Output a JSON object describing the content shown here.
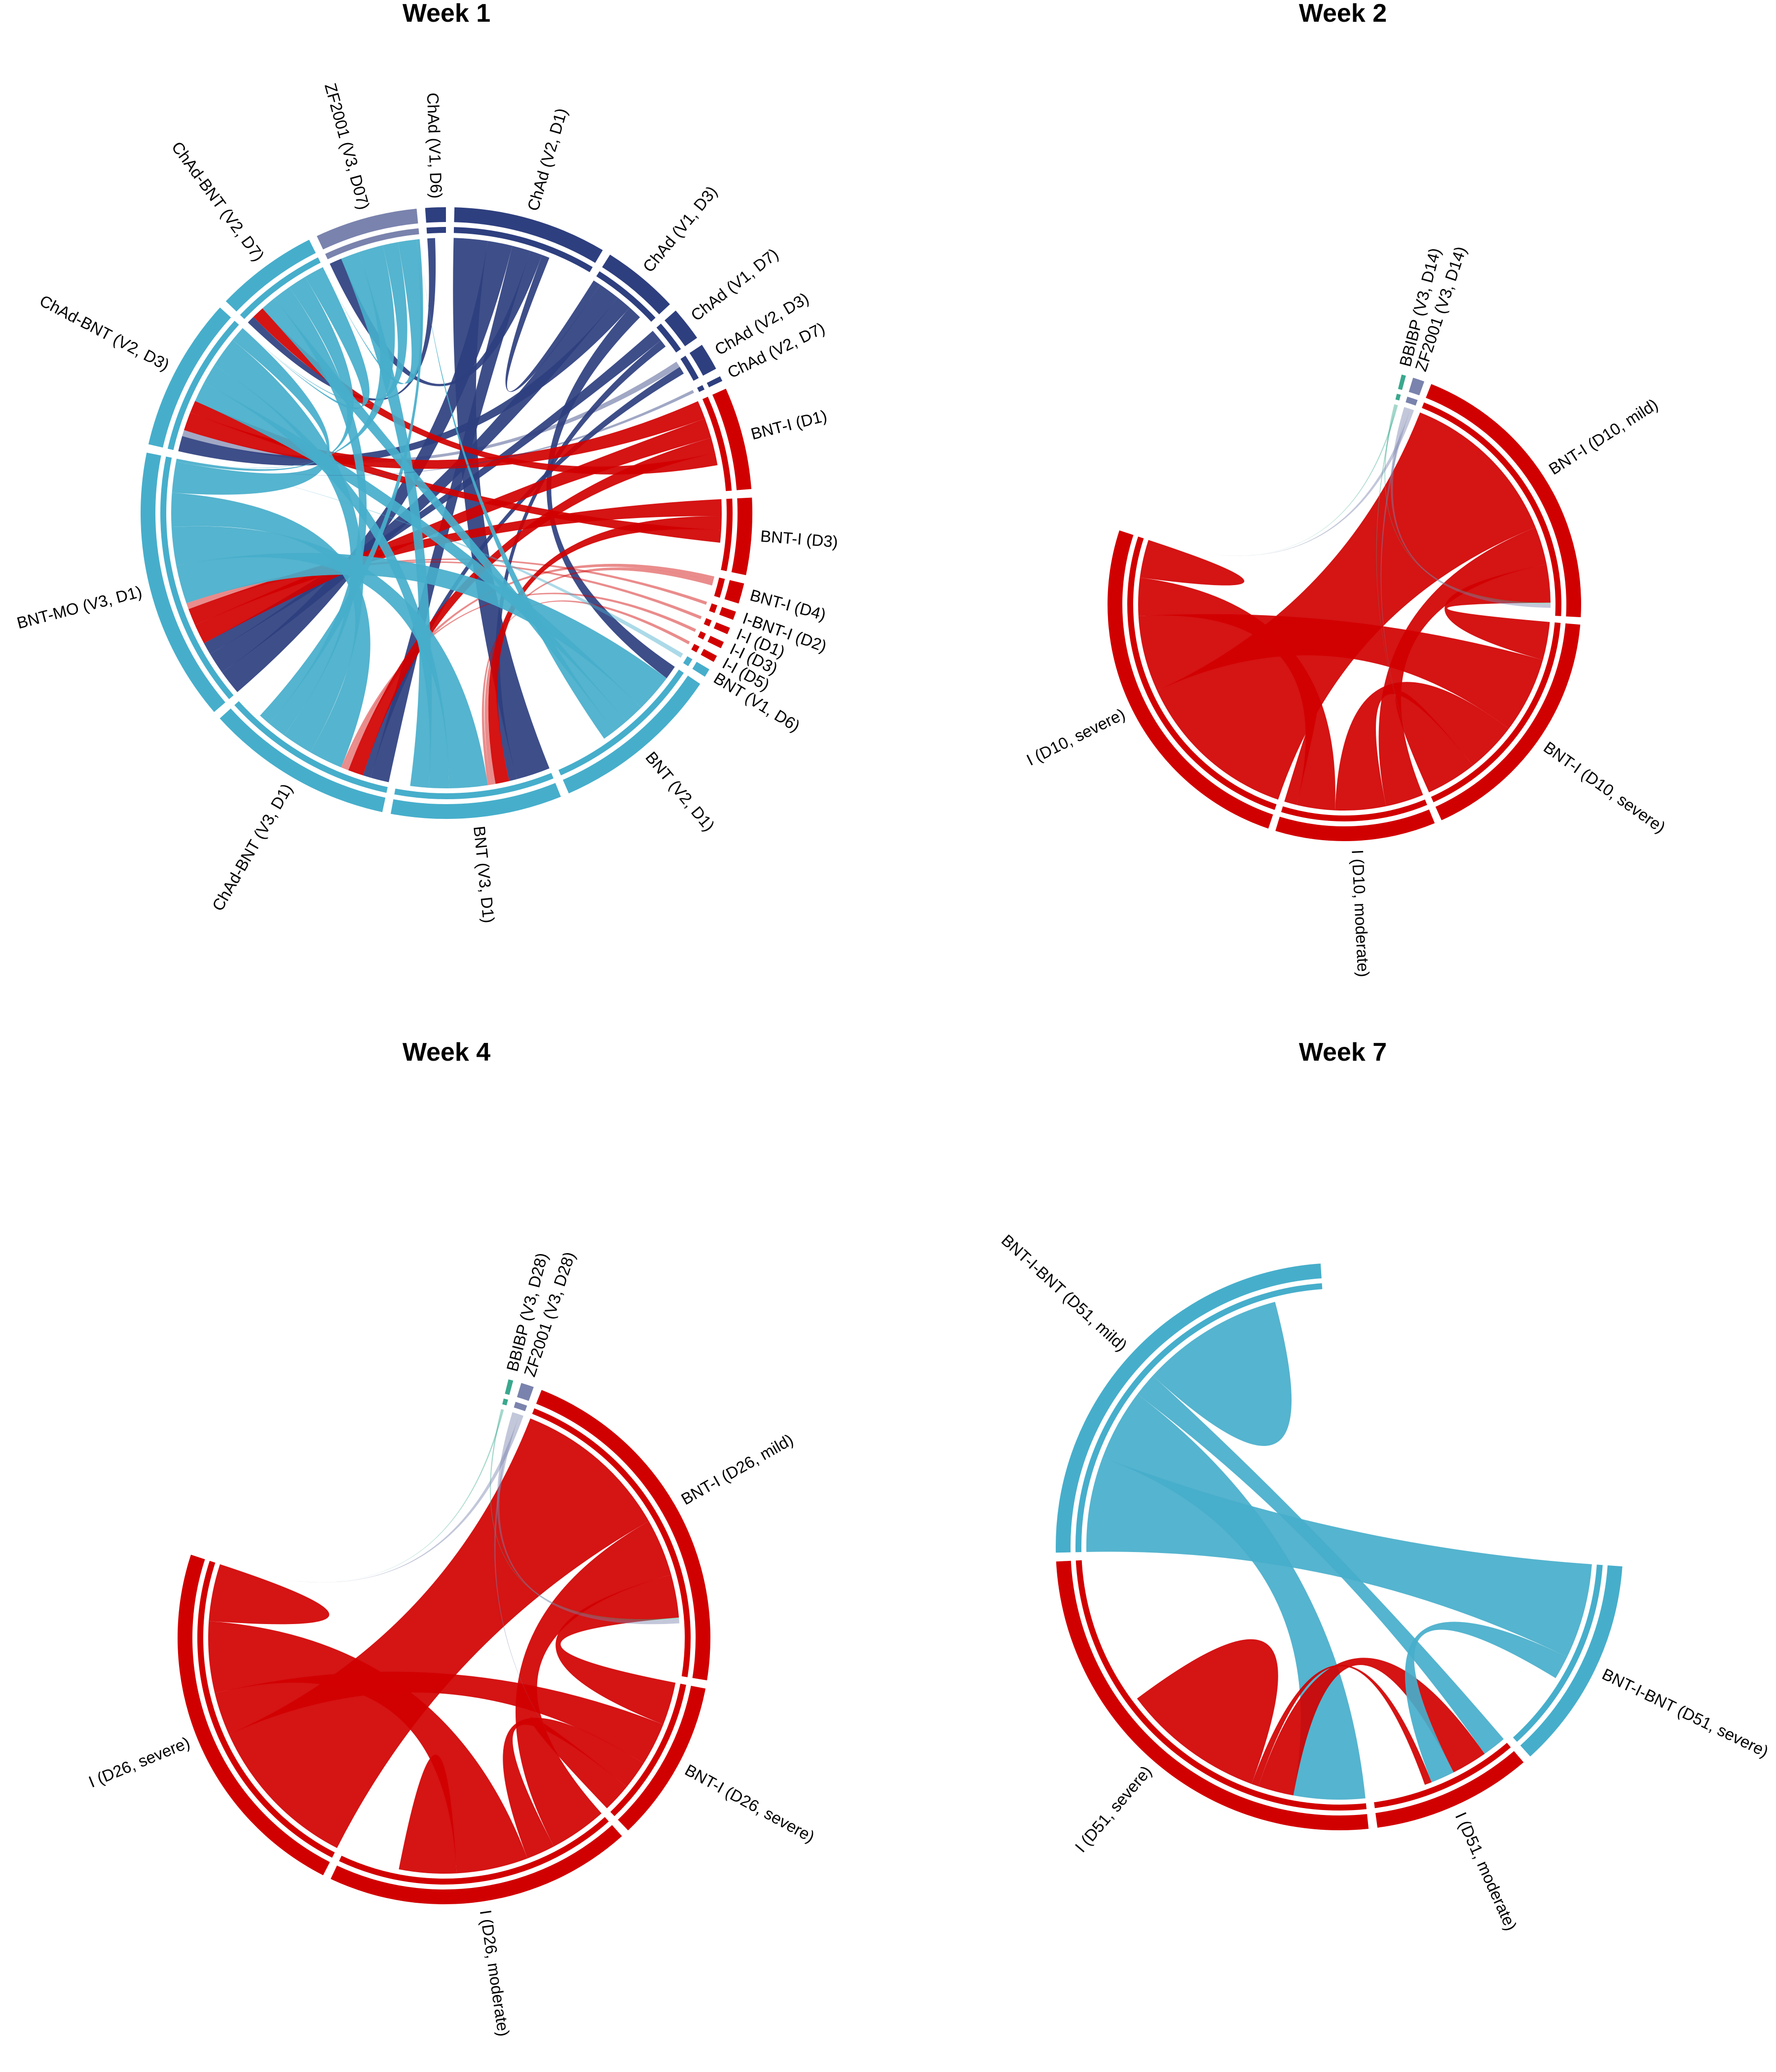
{
  "colors": {
    "ChAd": "#2e3f7f",
    "BNT": "#46aecb",
    "I": "#d10000",
    "ZF2001": "#7a83ad",
    "BBIBP": "#3aa88e"
  },
  "chart_data": [
    {
      "type": "chord",
      "title": "Week 1",
      "sectors": [
        {
          "label": "ChAd (V1, D6)",
          "color_key": "ChAd",
          "size": 1.2
        },
        {
          "label": "ChAd (V2, D1)",
          "color_key": "ChAd",
          "size": 9
        },
        {
          "label": "ChAd (V1, D3)",
          "color_key": "ChAd",
          "size": 4.5
        },
        {
          "label": "ChAd (V1, D7)",
          "color_key": "ChAd",
          "size": 2
        },
        {
          "label": "ChAd (V2, D3)",
          "color_key": "ChAd",
          "size": 1.6
        },
        {
          "label": "ChAd (V2, D7)",
          "color_key": "ChAd",
          "size": 0.3
        },
        {
          "label": "BNT-I (D1)",
          "color_key": "I",
          "size": 6
        },
        {
          "label": "BNT-I (D3)",
          "color_key": "I",
          "size": 4.5
        },
        {
          "label": "BNT-I (D4)",
          "color_key": "I",
          "size": 1.2
        },
        {
          "label": "I-BNT-I (D2)",
          "color_key": "I",
          "size": 0.5
        },
        {
          "label": "I-I (D1)",
          "color_key": "I",
          "size": 0.4
        },
        {
          "label": "I-I (D3)",
          "color_key": "I",
          "size": 0.4
        },
        {
          "label": "I-I (D5)",
          "color_key": "I",
          "size": 0.4
        },
        {
          "label": "BNT (V1, D6)",
          "color_key": "BNT",
          "size": 0.5
        },
        {
          "label": "BNT (V2, D1)",
          "color_key": "BNT",
          "size": 10
        },
        {
          "label": "BNT (V3, D1)",
          "color_key": "BNT",
          "size": 10
        },
        {
          "label": "ChAd-BNT (V3, D1)",
          "color_key": "BNT",
          "size": 11
        },
        {
          "label": "BNT-MO (V3, D1)",
          "color_key": "BNT",
          "size": 16
        },
        {
          "label": "ChAd-BNT (V2, D3)",
          "color_key": "BNT",
          "size": 9
        },
        {
          "label": "ChAd-BNT (V2, D7)",
          "color_key": "BNT",
          "size": 6
        },
        {
          "label": "ZF2001 (V3, D07)",
          "color_key": "ZF2001",
          "size": 6
        }
      ]
    },
    {
      "type": "chord",
      "title": "Week 2",
      "sectors": [
        {
          "label": "BBIBP (V3, D14)",
          "color_key": "BBIBP",
          "size": 0.3
        },
        {
          "label": "ZF2001 (V3, D14)",
          "color_key": "ZF2001",
          "size": 0.8
        },
        {
          "label": "BNT-I (D10, mild)",
          "color_key": "I",
          "size": 20
        },
        {
          "label": "BNT-I (D10, severe)",
          "color_key": "I",
          "size": 17
        },
        {
          "label": "I (D10, moderate)",
          "color_key": "I",
          "size": 11
        },
        {
          "label": "I (D10, severe)",
          "color_key": "I",
          "size": 25
        }
      ]
    },
    {
      "type": "chord",
      "title": "Week 4",
      "sectors": [
        {
          "label": "BBIBP (V3, D28)",
          "color_key": "BBIBP",
          "size": 0.3
        },
        {
          "label": "ZF2001 (V3, D28)",
          "color_key": "ZF2001",
          "size": 0.8
        },
        {
          "label": "BNT-I (D26, mild)",
          "color_key": "I",
          "size": 22
        },
        {
          "label": "BNT-I (D26, severe)",
          "color_key": "I",
          "size": 10
        },
        {
          "label": "I (D26, moderate)",
          "color_key": "I",
          "size": 19
        },
        {
          "label": "I (D26, severe)",
          "color_key": "I",
          "size": 23
        }
      ]
    },
    {
      "type": "chord",
      "title": "Week 7",
      "sectors": [
        {
          "label": "BNT-I-BNT (D51, severe)",
          "color_key": "BNT",
          "size": 16
        },
        {
          "label": "I (D51, moderate)",
          "color_key": "I",
          "size": 12
        },
        {
          "label": "I (D51, severe)",
          "color_key": "I",
          "size": 34
        },
        {
          "label": "BNT-I-BNT (D51, mild)",
          "color_key": "BNT",
          "size": 32
        }
      ]
    }
  ]
}
